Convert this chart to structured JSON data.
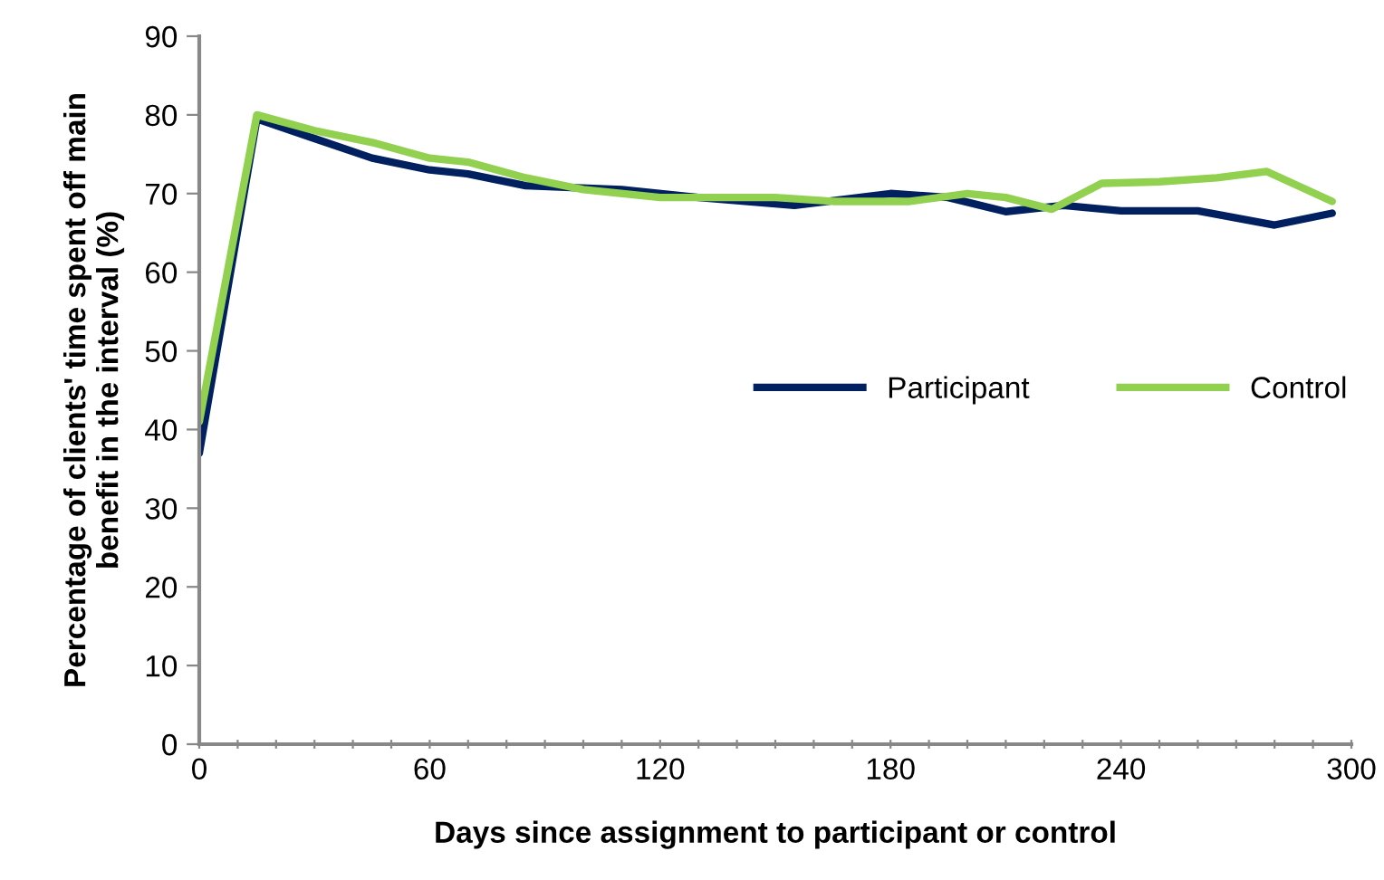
{
  "chart_data": {
    "type": "line",
    "xlabel": "Days since assignment to participant or control",
    "ylabel": "Percentage of clients' time spent off main\nbenefit in the interval (%)",
    "series": [
      {
        "name": "Participant",
        "color": "#002060",
        "x": [
          0,
          15,
          30,
          45,
          60,
          70,
          85,
          110,
          130,
          155,
          180,
          195,
          210,
          225,
          240,
          260,
          280,
          295
        ],
        "values": [
          37,
          79.5,
          77,
          74.5,
          73,
          72.5,
          71,
          70.5,
          69.5,
          68.5,
          70,
          69.5,
          67.7,
          68.5,
          67.8,
          67.8,
          66,
          67.5
        ]
      },
      {
        "name": "Control",
        "color": "#92d050",
        "x": [
          0,
          15,
          30,
          45,
          60,
          70,
          85,
          100,
          120,
          150,
          165,
          185,
          200,
          210,
          222,
          235,
          250,
          265,
          278,
          295
        ],
        "values": [
          41,
          80,
          78,
          76.5,
          74.5,
          74,
          72,
          70.5,
          69.5,
          69.5,
          69,
          69,
          70,
          69.5,
          68,
          71.3,
          71.5,
          72,
          72.8,
          69
        ]
      }
    ],
    "xlim": [
      0,
      300
    ],
    "ylim": [
      0,
      90
    ],
    "xticks": [
      0,
      {
        "value": 10,
        "label": null
      },
      {
        "value": 20,
        "label": null
      },
      {
        "value": 30,
        "label": null
      },
      {
        "value": 40,
        "label": null
      },
      {
        "value": 50,
        "label": null
      },
      60,
      {
        "value": 70,
        "label": null
      },
      {
        "value": 80,
        "label": null
      },
      {
        "value": 90,
        "label": null
      },
      {
        "value": 100,
        "label": null
      },
      {
        "value": 110,
        "label": null
      },
      120,
      {
        "value": 130,
        "label": null
      },
      {
        "value": 140,
        "label": null
      },
      {
        "value": 150,
        "label": null
      },
      {
        "value": 160,
        "label": null
      },
      {
        "value": 170,
        "label": null
      },
      180,
      {
        "value": 190,
        "label": null
      },
      {
        "value": 200,
        "label": null
      },
      {
        "value": 210,
        "label": null
      },
      {
        "value": 220,
        "label": null
      },
      {
        "value": 230,
        "label": null
      },
      240,
      {
        "value": 250,
        "label": null
      },
      {
        "value": 260,
        "label": null
      },
      {
        "value": 270,
        "label": null
      },
      {
        "value": 280,
        "label": null
      },
      {
        "value": 290,
        "label": null
      },
      300
    ],
    "yticks": [
      0,
      10,
      20,
      30,
      40,
      50,
      60,
      70,
      80,
      90
    ],
    "grid": false,
    "legend": "center right",
    "marker": "none",
    "line_style": "solid"
  }
}
